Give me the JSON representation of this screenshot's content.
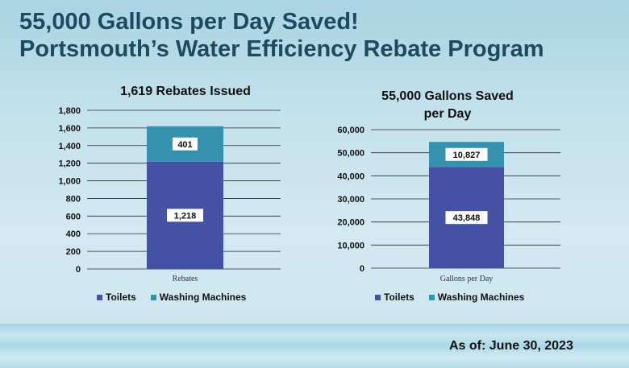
{
  "header": {
    "line1": "55,000 Gallons per Day Saved!",
    "line2": "Portsmouth’s Water Efficiency Rebate Program"
  },
  "footer": {
    "as_of": "As of: June 30, 2023"
  },
  "colors": {
    "toilets": "#4352a4",
    "washing_machines": "#3592ae",
    "title": "#1c4a5f"
  },
  "chart_data": [
    {
      "type": "bar",
      "stacked": true,
      "title": "1,619 Rebates Issued",
      "categories": [
        "Rebates"
      ],
      "series": [
        {
          "name": "Toilets",
          "values": [
            1218
          ],
          "labels": [
            "1,218"
          ]
        },
        {
          "name": "Washing Machines",
          "values": [
            401
          ],
          "labels": [
            "401"
          ]
        }
      ],
      "ylim": [
        0,
        1800
      ],
      "yticks": [
        0,
        200,
        400,
        600,
        800,
        1000,
        1200,
        1400,
        1600,
        1800
      ],
      "ytick_labels": [
        "0",
        "200",
        "400",
        "600",
        "800",
        "1,000",
        "1,200",
        "1,400",
        "1,600",
        "1,800"
      ],
      "grid": true,
      "legend": "bottom"
    },
    {
      "type": "bar",
      "stacked": true,
      "title_lines": [
        "55,000 Gallons Saved",
        "per Day"
      ],
      "categories": [
        "Gallons per Day"
      ],
      "series": [
        {
          "name": "Toilets",
          "values": [
            43848
          ],
          "labels": [
            "43,848"
          ]
        },
        {
          "name": "Washing Machines",
          "values": [
            10827
          ],
          "labels": [
            "10,827"
          ]
        }
      ],
      "ylim": [
        0,
        60000
      ],
      "yticks": [
        0,
        10000,
        20000,
        30000,
        40000,
        50000,
        60000
      ],
      "ytick_labels": [
        "0",
        "10,000",
        "20,000",
        "30,000",
        "40,000",
        "50,000",
        "60,000"
      ],
      "grid": true,
      "legend": "bottom"
    }
  ]
}
